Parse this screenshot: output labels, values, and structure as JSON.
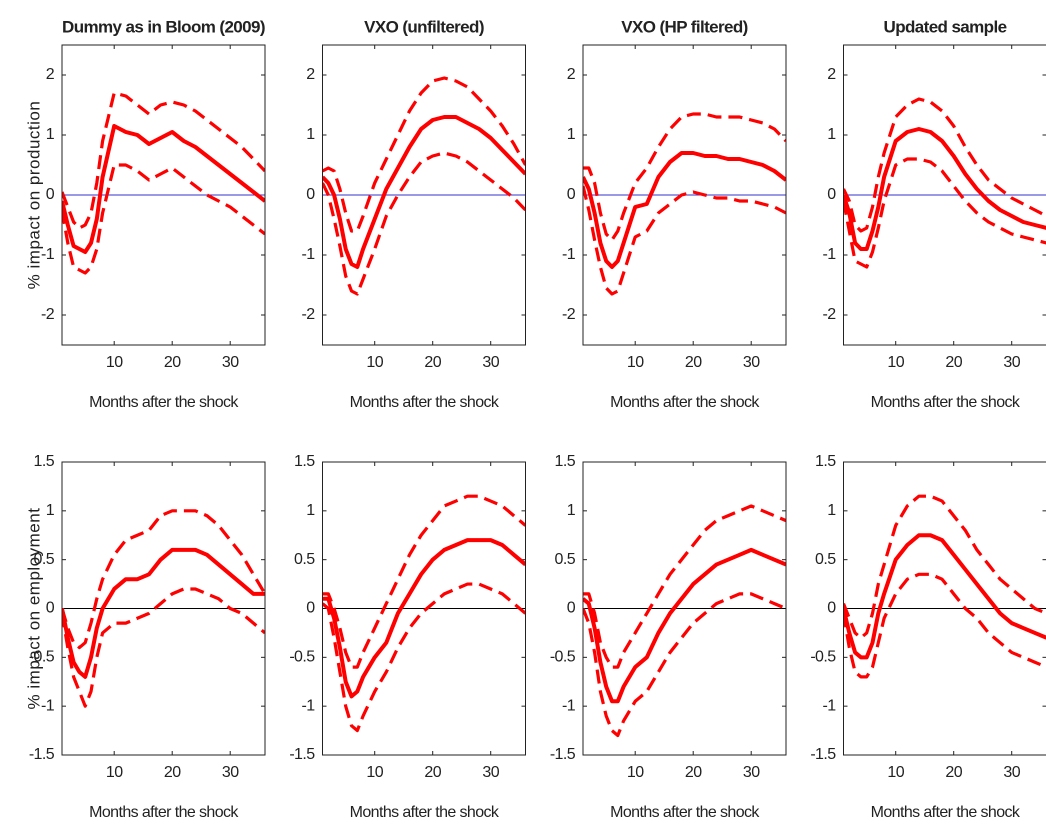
{
  "chart_data": [
    {
      "type": "line",
      "title": "Dummy as in Bloom (2009)",
      "ylabel": "% impact on production",
      "xlabel": "Months after the shock",
      "x": [
        1,
        2,
        3,
        4,
        5,
        6,
        7,
        8,
        10,
        12,
        14,
        16,
        18,
        20,
        22,
        24,
        26,
        28,
        30,
        32,
        34,
        36
      ],
      "xlim": [
        1,
        36
      ],
      "xticks": [
        10,
        20,
        30
      ],
      "ylim": [
        -2.5,
        2.5
      ],
      "yticks": [
        -2,
        -1,
        0,
        1,
        2
      ],
      "zero_line": "#3333cc",
      "series": [
        {
          "color": "#ff0000",
          "style": "solid",
          "values": [
            -0.1,
            -0.5,
            -0.85,
            -0.9,
            -0.95,
            -0.8,
            -0.4,
            0.3,
            1.15,
            1.05,
            1.0,
            0.85,
            0.95,
            1.05,
            0.9,
            0.8,
            0.65,
            0.5,
            0.35,
            0.2,
            0.05,
            -0.1
          ]
        },
        {
          "color": "#ff0000",
          "style": "dashed",
          "values": [
            0.05,
            -0.2,
            -0.45,
            -0.55,
            -0.5,
            -0.3,
            0.2,
            0.9,
            1.7,
            1.65,
            1.5,
            1.35,
            1.5,
            1.55,
            1.5,
            1.4,
            1.25,
            1.1,
            0.95,
            0.8,
            0.6,
            0.4
          ]
        },
        {
          "color": "#ff0000",
          "style": "dashed",
          "values": [
            -0.25,
            -0.8,
            -1.2,
            -1.25,
            -1.3,
            -1.2,
            -0.9,
            -0.3,
            0.5,
            0.5,
            0.4,
            0.25,
            0.35,
            0.45,
            0.3,
            0.15,
            0.0,
            -0.1,
            -0.2,
            -0.35,
            -0.5,
            -0.65
          ]
        }
      ]
    },
    {
      "type": "line",
      "title": "VXO (unfiltered)",
      "xlabel": "Months after the shock",
      "x": [
        1,
        2,
        3,
        4,
        5,
        6,
        7,
        8,
        10,
        12,
        14,
        16,
        18,
        20,
        22,
        24,
        26,
        28,
        30,
        32,
        34,
        36
      ],
      "xlim": [
        1,
        36
      ],
      "xticks": [
        10,
        20,
        30
      ],
      "ylim": [
        -2.5,
        2.5
      ],
      "yticks": [
        -2,
        -1,
        0,
        1,
        2
      ],
      "zero_line": "#3333cc",
      "series": [
        {
          "color": "#ff0000",
          "style": "solid",
          "values": [
            0.3,
            0.2,
            0.0,
            -0.4,
            -0.9,
            -1.15,
            -1.2,
            -0.9,
            -0.4,
            0.1,
            0.45,
            0.8,
            1.1,
            1.25,
            1.3,
            1.3,
            1.2,
            1.1,
            0.95,
            0.75,
            0.55,
            0.35
          ]
        },
        {
          "color": "#ff0000",
          "style": "dashed",
          "values": [
            0.4,
            0.45,
            0.4,
            0.1,
            -0.3,
            -0.6,
            -0.6,
            -0.35,
            0.2,
            0.6,
            1.0,
            1.4,
            1.7,
            1.9,
            1.95,
            1.9,
            1.8,
            1.6,
            1.4,
            1.15,
            0.85,
            0.5
          ]
        },
        {
          "color": "#ff0000",
          "style": "dashed",
          "values": [
            0.2,
            0.0,
            -0.4,
            -0.85,
            -1.35,
            -1.6,
            -1.65,
            -1.4,
            -0.9,
            -0.35,
            0.0,
            0.3,
            0.55,
            0.65,
            0.7,
            0.65,
            0.55,
            0.4,
            0.25,
            0.1,
            -0.05,
            -0.25
          ]
        }
      ]
    },
    {
      "type": "line",
      "title": "VXO (HP filtered)",
      "xlabel": "Months after the shock",
      "x": [
        1,
        2,
        3,
        4,
        5,
        6,
        7,
        8,
        10,
        12,
        14,
        16,
        18,
        20,
        22,
        24,
        26,
        28,
        30,
        32,
        34,
        36
      ],
      "xlim": [
        1,
        36
      ],
      "xticks": [
        10,
        20,
        30
      ],
      "ylim": [
        -2.5,
        2.5
      ],
      "yticks": [
        -2,
        -1,
        0,
        1,
        2
      ],
      "zero_line": "#3333cc",
      "series": [
        {
          "color": "#ff0000",
          "style": "solid",
          "values": [
            0.3,
            0.1,
            -0.3,
            -0.8,
            -1.1,
            -1.2,
            -1.1,
            -0.8,
            -0.2,
            -0.15,
            0.3,
            0.55,
            0.7,
            0.7,
            0.65,
            0.65,
            0.6,
            0.6,
            0.55,
            0.5,
            0.4,
            0.25
          ]
        },
        {
          "color": "#ff0000",
          "style": "dashed",
          "values": [
            0.45,
            0.45,
            0.2,
            -0.3,
            -0.65,
            -0.75,
            -0.6,
            -0.3,
            0.2,
            0.45,
            0.8,
            1.1,
            1.3,
            1.35,
            1.35,
            1.3,
            1.3,
            1.3,
            1.25,
            1.2,
            1.1,
            0.9
          ]
        },
        {
          "color": "#ff0000",
          "style": "dashed",
          "values": [
            0.15,
            -0.25,
            -0.75,
            -1.2,
            -1.55,
            -1.65,
            -1.6,
            -1.3,
            -0.7,
            -0.6,
            -0.3,
            -0.15,
            0.0,
            0.05,
            0.0,
            -0.05,
            -0.05,
            -0.1,
            -0.1,
            -0.15,
            -0.2,
            -0.3
          ]
        }
      ]
    },
    {
      "type": "line",
      "title": "Updated sample",
      "xlabel": "Months after the shock",
      "x": [
        1,
        2,
        3,
        4,
        5,
        6,
        7,
        8,
        10,
        12,
        14,
        16,
        18,
        20,
        22,
        24,
        26,
        28,
        30,
        32,
        34,
        36
      ],
      "xlim": [
        1,
        36
      ],
      "xticks": [
        10,
        20,
        30
      ],
      "ylim": [
        -2.5,
        2.5
      ],
      "yticks": [
        -2,
        -1,
        0,
        1,
        2
      ],
      "zero_line": "#3333cc",
      "series": [
        {
          "color": "#ff0000",
          "style": "solid",
          "values": [
            0.0,
            -0.3,
            -0.8,
            -0.9,
            -0.9,
            -0.6,
            -0.2,
            0.3,
            0.9,
            1.05,
            1.1,
            1.05,
            0.9,
            0.65,
            0.35,
            0.1,
            -0.1,
            -0.25,
            -0.35,
            -0.45,
            -0.5,
            -0.55
          ]
        },
        {
          "color": "#ff0000",
          "style": "dashed",
          "values": [
            0.1,
            -0.1,
            -0.5,
            -0.6,
            -0.55,
            -0.2,
            0.3,
            0.7,
            1.3,
            1.5,
            1.6,
            1.55,
            1.4,
            1.15,
            0.8,
            0.5,
            0.25,
            0.1,
            -0.05,
            -0.15,
            -0.25,
            -0.35
          ]
        },
        {
          "color": "#ff0000",
          "style": "dashed",
          "values": [
            -0.1,
            -0.6,
            -1.1,
            -1.15,
            -1.2,
            -0.95,
            -0.55,
            -0.1,
            0.5,
            0.6,
            0.6,
            0.55,
            0.4,
            0.15,
            -0.1,
            -0.3,
            -0.45,
            -0.55,
            -0.65,
            -0.7,
            -0.75,
            -0.8
          ]
        }
      ]
    },
    {
      "type": "line",
      "ylabel": "% impact on employment",
      "xlabel": "Months after the shock",
      "x": [
        1,
        2,
        3,
        4,
        5,
        6,
        7,
        8,
        10,
        12,
        14,
        16,
        18,
        20,
        22,
        24,
        26,
        28,
        30,
        32,
        34,
        36
      ],
      "xlim": [
        1,
        36
      ],
      "xticks": [
        10,
        20,
        30
      ],
      "ylim": [
        -1.5,
        1.5
      ],
      "yticks": [
        -1.5,
        -1,
        -0.5,
        0,
        0.5,
        1,
        1.5
      ],
      "zero_line": "#000000",
      "series": [
        {
          "color": "#ff0000",
          "style": "solid",
          "values": [
            0.0,
            -0.3,
            -0.55,
            -0.65,
            -0.7,
            -0.5,
            -0.2,
            0.0,
            0.2,
            0.3,
            0.3,
            0.35,
            0.5,
            0.6,
            0.6,
            0.6,
            0.55,
            0.45,
            0.35,
            0.25,
            0.15,
            0.15
          ]
        },
        {
          "color": "#ff0000",
          "style": "dashed",
          "values": [
            0.0,
            -0.2,
            -0.35,
            -0.4,
            -0.35,
            -0.15,
            0.1,
            0.3,
            0.55,
            0.7,
            0.75,
            0.8,
            0.95,
            1.0,
            1.0,
            1.0,
            0.95,
            0.85,
            0.7,
            0.55,
            0.35,
            0.15
          ]
        },
        {
          "color": "#ff0000",
          "style": "dashed",
          "values": [
            -0.05,
            -0.4,
            -0.7,
            -0.85,
            -1.0,
            -0.85,
            -0.5,
            -0.25,
            -0.15,
            -0.15,
            -0.1,
            -0.05,
            0.05,
            0.15,
            0.2,
            0.2,
            0.15,
            0.1,
            0.0,
            -0.05,
            -0.15,
            -0.25
          ]
        }
      ]
    },
    {
      "type": "line",
      "xlabel": "Months after the shock",
      "x": [
        1,
        2,
        3,
        4,
        5,
        6,
        7,
        8,
        10,
        12,
        14,
        16,
        18,
        20,
        22,
        24,
        26,
        28,
        30,
        32,
        34,
        36
      ],
      "xlim": [
        1,
        36
      ],
      "xticks": [
        10,
        20,
        30
      ],
      "ylim": [
        -1.5,
        1.5
      ],
      "yticks": [
        -1.5,
        -1,
        -0.5,
        0,
        0.5,
        1,
        1.5
      ],
      "zero_line": "#000000",
      "series": [
        {
          "color": "#ff0000",
          "style": "solid",
          "values": [
            0.1,
            0.1,
            -0.1,
            -0.4,
            -0.75,
            -0.9,
            -0.85,
            -0.7,
            -0.5,
            -0.35,
            -0.05,
            0.15,
            0.35,
            0.5,
            0.6,
            0.65,
            0.7,
            0.7,
            0.7,
            0.65,
            0.55,
            0.45
          ]
        },
        {
          "color": "#ff0000",
          "style": "dashed",
          "values": [
            0.15,
            0.15,
            0.0,
            -0.2,
            -0.45,
            -0.6,
            -0.6,
            -0.45,
            -0.2,
            0.05,
            0.3,
            0.55,
            0.75,
            0.9,
            1.05,
            1.1,
            1.15,
            1.15,
            1.1,
            1.05,
            0.95,
            0.85
          ]
        },
        {
          "color": "#ff0000",
          "style": "dashed",
          "values": [
            0.05,
            0.0,
            -0.3,
            -0.65,
            -1.0,
            -1.2,
            -1.25,
            -1.1,
            -0.85,
            -0.65,
            -0.4,
            -0.2,
            -0.05,
            0.05,
            0.15,
            0.2,
            0.25,
            0.25,
            0.2,
            0.15,
            0.05,
            -0.05
          ]
        }
      ]
    },
    {
      "type": "line",
      "xlabel": "Months after the shock",
      "x": [
        1,
        2,
        3,
        4,
        5,
        6,
        7,
        8,
        10,
        12,
        14,
        16,
        18,
        20,
        22,
        24,
        26,
        28,
        30,
        32,
        34,
        36
      ],
      "xlim": [
        1,
        36
      ],
      "xticks": [
        10,
        20,
        30
      ],
      "ylim": [
        -1.5,
        1.5
      ],
      "yticks": [
        -1.5,
        -1,
        -0.5,
        0,
        0.5,
        1,
        1.5
      ],
      "zero_line": "#000000",
      "series": [
        {
          "color": "#ff0000",
          "style": "solid",
          "values": [
            0.1,
            0.05,
            -0.2,
            -0.55,
            -0.8,
            -0.95,
            -0.95,
            -0.8,
            -0.6,
            -0.5,
            -0.25,
            -0.05,
            0.1,
            0.25,
            0.35,
            0.45,
            0.5,
            0.55,
            0.6,
            0.55,
            0.5,
            0.45
          ]
        },
        {
          "color": "#ff0000",
          "style": "dashed",
          "values": [
            0.15,
            0.15,
            -0.05,
            -0.35,
            -0.5,
            -0.6,
            -0.6,
            -0.45,
            -0.25,
            -0.05,
            0.15,
            0.35,
            0.5,
            0.65,
            0.8,
            0.9,
            0.95,
            1.0,
            1.05,
            1.0,
            0.95,
            0.9
          ]
        },
        {
          "color": "#ff0000",
          "style": "dashed",
          "values": [
            0.0,
            -0.15,
            -0.45,
            -0.85,
            -1.1,
            -1.25,
            -1.3,
            -1.15,
            -0.95,
            -0.85,
            -0.65,
            -0.45,
            -0.3,
            -0.15,
            -0.05,
            0.05,
            0.1,
            0.15,
            0.15,
            0.1,
            0.05,
            0.0
          ]
        }
      ]
    },
    {
      "type": "line",
      "xlabel": "Months after the shock",
      "x": [
        1,
        2,
        3,
        4,
        5,
        6,
        7,
        8,
        10,
        12,
        14,
        16,
        18,
        20,
        22,
        24,
        26,
        28,
        30,
        32,
        34,
        36
      ],
      "xlim": [
        1,
        36
      ],
      "xticks": [
        10,
        20,
        30
      ],
      "ylim": [
        -1.5,
        1.5
      ],
      "yticks": [
        -1.5,
        -1,
        -0.5,
        0,
        0.5,
        1,
        1.5
      ],
      "zero_line": "#000000",
      "series": [
        {
          "color": "#ff0000",
          "style": "solid",
          "values": [
            0.0,
            -0.25,
            -0.45,
            -0.5,
            -0.5,
            -0.35,
            -0.05,
            0.15,
            0.5,
            0.65,
            0.75,
            0.75,
            0.7,
            0.55,
            0.4,
            0.25,
            0.1,
            -0.05,
            -0.15,
            -0.2,
            -0.25,
            -0.3
          ]
        },
        {
          "color": "#ff0000",
          "style": "dashed",
          "values": [
            0.05,
            -0.1,
            -0.25,
            -0.3,
            -0.25,
            -0.05,
            0.25,
            0.45,
            0.85,
            1.05,
            1.15,
            1.15,
            1.1,
            0.95,
            0.8,
            0.6,
            0.45,
            0.3,
            0.2,
            0.1,
            0.0,
            -0.05
          ]
        },
        {
          "color": "#ff0000",
          "style": "dashed",
          "values": [
            -0.05,
            -0.4,
            -0.65,
            -0.7,
            -0.7,
            -0.6,
            -0.35,
            -0.1,
            0.15,
            0.3,
            0.35,
            0.35,
            0.3,
            0.15,
            0.0,
            -0.1,
            -0.25,
            -0.35,
            -0.45,
            -0.5,
            -0.55,
            -0.6
          ]
        }
      ]
    }
  ]
}
